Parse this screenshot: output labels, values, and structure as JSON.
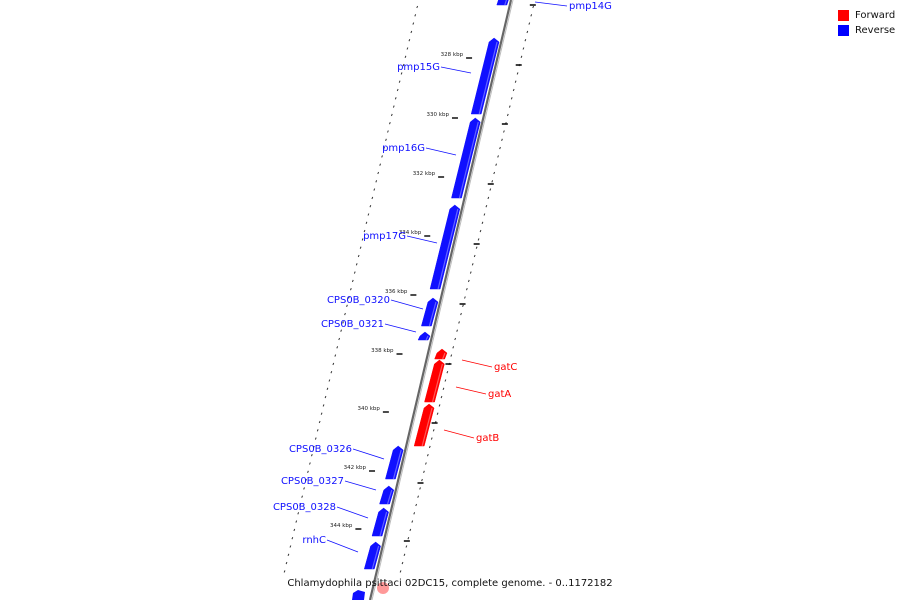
{
  "caption": "Chlamydophila psittaci 02DC15, complete genome. - 0..1172182",
  "legend": [
    {
      "label": "Forward",
      "color": "#ff0000"
    },
    {
      "label": "Reverse",
      "color": "#0000ff"
    }
  ],
  "colors": {
    "forward": "#ff0000",
    "reverse": "#1010ff",
    "backbone": "#888888"
  },
  "scale_labels": [
    "328 kbp",
    "330 kbp",
    "332 kbp",
    "334 kbp",
    "336 kbp",
    "338 kbp",
    "340 kbp",
    "342 kbp",
    "344 kbp"
  ],
  "genes": [
    {
      "name": "pmp14G",
      "strand": "reverse"
    },
    {
      "name": "pmp15G",
      "strand": "reverse"
    },
    {
      "name": "pmp16G",
      "strand": "reverse"
    },
    {
      "name": "pmp17G",
      "strand": "reverse"
    },
    {
      "name": "CPS0B_0320",
      "strand": "reverse"
    },
    {
      "name": "CPS0B_0321",
      "strand": "reverse"
    },
    {
      "name": "gatC",
      "strand": "forward"
    },
    {
      "name": "gatA",
      "strand": "forward"
    },
    {
      "name": "gatB",
      "strand": "forward"
    },
    {
      "name": "CPS0B_0326",
      "strand": "reverse"
    },
    {
      "name": "CPS0B_0327",
      "strand": "reverse"
    },
    {
      "name": "CPS0B_0328",
      "strand": "reverse"
    },
    {
      "name": "rnhC",
      "strand": "reverse"
    }
  ]
}
